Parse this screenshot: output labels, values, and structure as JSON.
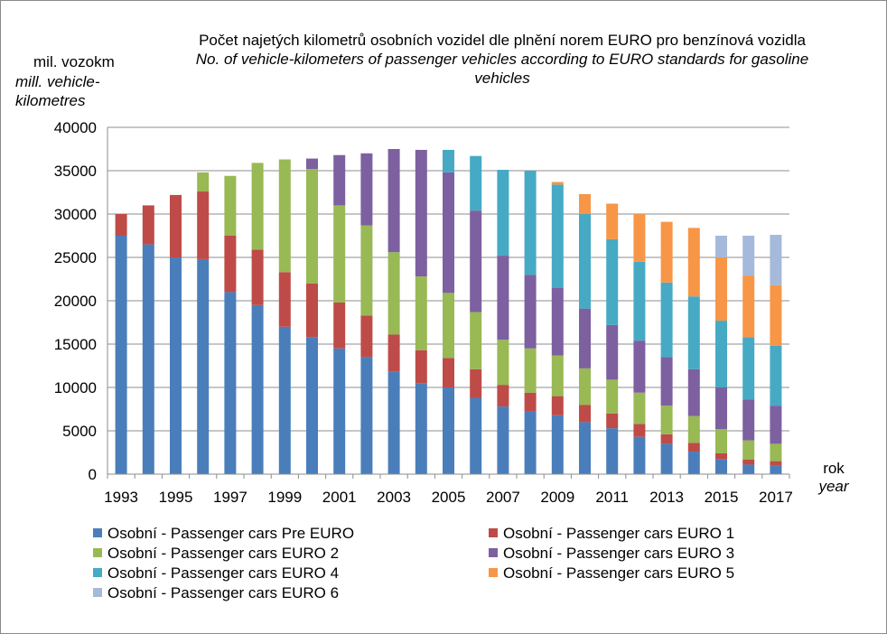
{
  "chart_data": {
    "type": "bar",
    "stacked": true,
    "title_cz": "Počet najetých kilometrů osobních vozidel dle plnění norem EURO pro benzínová vozidla",
    "title_en_line1": "No. of vehicle-kilometers of  passenger vehicles according to EURO standards for gasoline",
    "title_en_line2": "vehicles",
    "ylabel_cz": "mil. vozokm",
    "ylabel_en_line1": "mill. vehicle-",
    "ylabel_en_line2": "kilometres",
    "xlabel_cz": "rok",
    "xlabel_en": "year",
    "ylim": [
      0,
      40000
    ],
    "yticks": [
      "0",
      "5000",
      "10000",
      "15000",
      "20000",
      "25000",
      "30000",
      "35000",
      "40000"
    ],
    "categories": [
      "1993",
      "1994",
      "1995",
      "1996",
      "1997",
      "1998",
      "1999",
      "2000",
      "2001",
      "2002",
      "2003",
      "2004",
      "2005",
      "2006",
      "2007",
      "2008",
      "2009",
      "2010",
      "2011",
      "2012",
      "2013",
      "2014",
      "2015",
      "2016",
      "2017"
    ],
    "xtick_labels": [
      "1993",
      "1995",
      "1997",
      "1999",
      "2001",
      "2003",
      "2005",
      "2007",
      "2009",
      "2011",
      "2013",
      "2015",
      "2017"
    ],
    "grid": "horizontal",
    "legend_position": "bottom",
    "series": [
      {
        "name": "Osobní - Passenger cars Pre EURO",
        "color": "#4a7ebb",
        "values": [
          27500,
          26500,
          25000,
          24800,
          21000,
          19500,
          17000,
          15800,
          14500,
          13500,
          11800,
          10500,
          10000,
          8800,
          7800,
          7200,
          6800,
          6000,
          5300,
          4300,
          3500,
          2600,
          1700,
          1100,
          1000
        ]
      },
      {
        "name": "Osobní - Passenger cars EURO 1",
        "color": "#be4b48",
        "values": [
          2500,
          4500,
          7200,
          7800,
          6500,
          6400,
          6300,
          6200,
          5300,
          4800,
          4300,
          3800,
          3400,
          3300,
          2500,
          2200,
          2200,
          2000,
          1700,
          1500,
          1100,
          1000,
          700,
          600,
          500
        ]
      },
      {
        "name": "Osobní - Passenger cars EURO 2",
        "color": "#98b954",
        "values": [
          0,
          0,
          0,
          2200,
          6900,
          10000,
          13000,
          13200,
          11200,
          10400,
          9500,
          8500,
          7500,
          6600,
          5200,
          5100,
          4700,
          4200,
          3900,
          3600,
          3300,
          3100,
          2800,
          2200,
          2000
        ]
      },
      {
        "name": "Osobní - Passenger cars EURO 3",
        "color": "#7d60a0",
        "values": [
          0,
          0,
          0,
          0,
          0,
          0,
          0,
          1200,
          5800,
          8300,
          11900,
          14600,
          13900,
          11700,
          9700,
          8500,
          7800,
          6900,
          6300,
          6000,
          5600,
          5400,
          4800,
          4700,
          4400
        ]
      },
      {
        "name": "Osobní - Passenger cars EURO 4",
        "color": "#46aac4",
        "values": [
          0,
          0,
          0,
          0,
          0,
          0,
          0,
          0,
          0,
          0,
          0,
          0,
          2600,
          6300,
          9900,
          12000,
          11900,
          10900,
          9900,
          9100,
          8600,
          8400,
          7700,
          7200,
          6900
        ]
      },
      {
        "name": "Osobní - Passenger cars EURO 5",
        "color": "#f79646",
        "values": [
          0,
          0,
          0,
          0,
          0,
          0,
          0,
          0,
          0,
          0,
          0,
          0,
          0,
          0,
          0,
          0,
          300,
          2300,
          4100,
          5500,
          7000,
          7900,
          7300,
          7100,
          7000
        ]
      },
      {
        "name": "Osobní - Passenger cars EURO 6",
        "color": "#a5b9da",
        "values": [
          0,
          0,
          0,
          0,
          0,
          0,
          0,
          0,
          0,
          0,
          0,
          0,
          0,
          0,
          0,
          0,
          0,
          0,
          0,
          0,
          0,
          0,
          2500,
          4600,
          5800
        ]
      }
    ]
  }
}
